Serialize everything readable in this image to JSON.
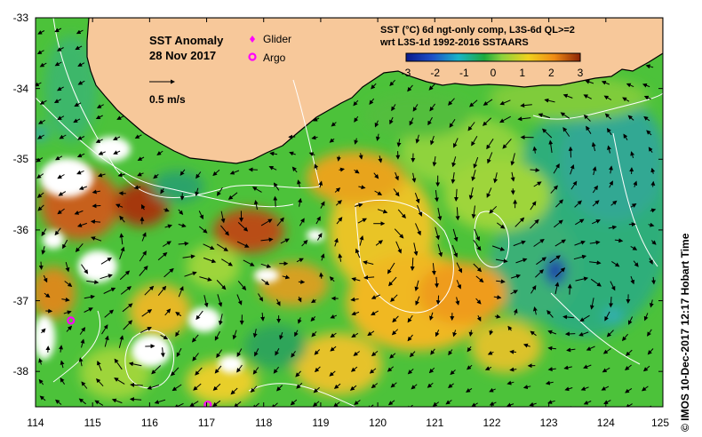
{
  "map": {
    "title": "SST Anomaly",
    "date": "28 Nov 2017",
    "velocity_scale_label": "0.5 m/s",
    "product_line1": "SST (°C) 6d ngt-only comp, L3S-6d QL>=2",
    "product_line2": "wrt L3S-1d 1992-2016 SSTAARS",
    "credit": "© IMOS 10-Dec-2017 12:17 Hobart Time",
    "legend": [
      {
        "label": "Glider",
        "symbol": "diamond",
        "color": "#ff00ff"
      },
      {
        "label": "Argo",
        "symbol": "ring",
        "color": "#ff00ff"
      }
    ],
    "lon_range": [
      114,
      125
    ],
    "lat_range": [
      -38.5,
      -33
    ],
    "lon_ticks": [
      "114",
      "115",
      "116",
      "117",
      "118",
      "119",
      "120",
      "121",
      "122",
      "123",
      "124",
      "125"
    ],
    "lat_ticks": [
      "-33",
      "-34",
      "-35",
      "-36",
      "-37",
      "-38"
    ],
    "colorbar": {
      "ticks": [
        "-3",
        "-2",
        "-1",
        "0",
        "1",
        "2",
        "3"
      ],
      "range": [
        -3,
        3
      ],
      "colors": [
        "#0a1a8c",
        "#1e50c8",
        "#19b4c8",
        "#1eaa3c",
        "#8cd23c",
        "#f0d21e",
        "#f08c14",
        "#c83c0a",
        "#8c2305"
      ]
    },
    "colors": {
      "land": "#f7c89a",
      "coast": "#000000",
      "contour": "#ffffff",
      "marker": "#ff00ff"
    },
    "argo_floats": [
      {
        "name": "argo-float-west",
        "lon": 114.62,
        "lat": -37.28
      },
      {
        "name": "argo-float-south",
        "lon": 117.02,
        "lat": -38.47
      }
    ]
  }
}
